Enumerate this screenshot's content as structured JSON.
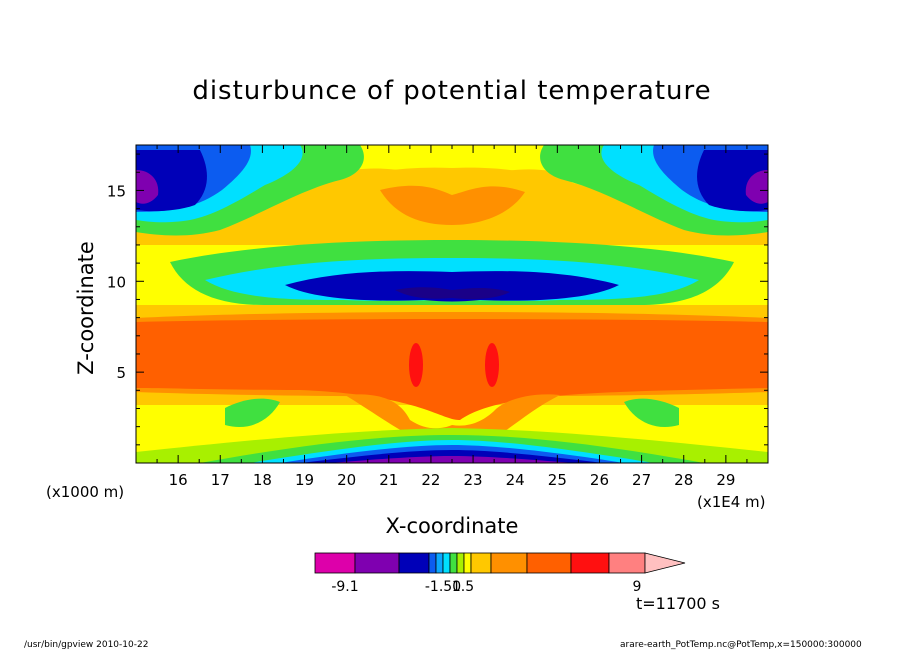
{
  "chart_data": {
    "type": "contour",
    "title": "disturbunce of potential temperature",
    "xlabel": "X-coordinate",
    "ylabel": "Z-coordinate",
    "x_unit": "(x1E4 m)",
    "y_unit": "(x1000 m)",
    "xlim": [
      15.0,
      30.0
    ],
    "ylim": [
      0.0,
      17.5
    ],
    "x_ticks": [
      "16",
      "17",
      "18",
      "19",
      "20",
      "21",
      "22",
      "23",
      "24",
      "25",
      "26",
      "27",
      "28",
      "29"
    ],
    "y_ticks": [
      "5",
      "10",
      "15"
    ],
    "colorbar": {
      "tick_labels": [
        "-9.1",
        "-1.50",
        "1.5",
        "9"
      ],
      "colors": [
        "#dd00aa",
        "#7f00b0",
        "#0000b8",
        "#0c5cf0",
        "#0aa8ff",
        "#00e0ff",
        "#40e040",
        "#a8f000",
        "#ffff00",
        "#ffc800",
        "#ff9000",
        "#ff6000",
        "#ff1010",
        "#ff8080",
        "#ffc0c0"
      ]
    },
    "time_label": "t=11700 s",
    "footer_left": "/usr/bin/gpview   2010-10-22",
    "footer_right": "arare-earth_PotTemp.nc@PotTemp,x=150000:300000"
  }
}
